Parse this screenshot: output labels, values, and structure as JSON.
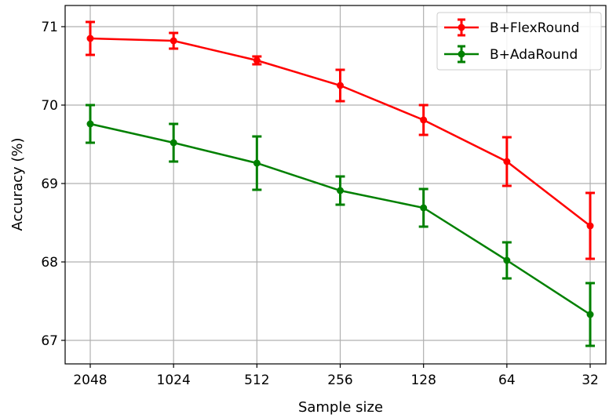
{
  "chart_data": {
    "type": "line",
    "xlabel": "Sample size",
    "ylabel": "Accuracy (%)",
    "categories": [
      "2048",
      "1024",
      "512",
      "256",
      "128",
      "64",
      "32"
    ],
    "yticks": [
      67,
      68,
      69,
      70,
      71
    ],
    "ylim": [
      66.7,
      71.27
    ],
    "grid": true,
    "legend_position": "top-right",
    "series": [
      {
        "name": "B+FlexRound",
        "color": "#ff0000",
        "values": [
          70.85,
          70.82,
          70.57,
          70.25,
          69.81,
          69.28,
          68.46
        ],
        "errors": [
          0.21,
          0.1,
          0.05,
          0.2,
          0.19,
          0.31,
          0.42
        ]
      },
      {
        "name": "B+AdaRound",
        "color": "#008000",
        "values": [
          69.76,
          69.52,
          69.26,
          68.91,
          68.69,
          68.02,
          67.33
        ],
        "errors": [
          0.24,
          0.24,
          0.34,
          0.18,
          0.24,
          0.23,
          0.4
        ]
      }
    ]
  }
}
